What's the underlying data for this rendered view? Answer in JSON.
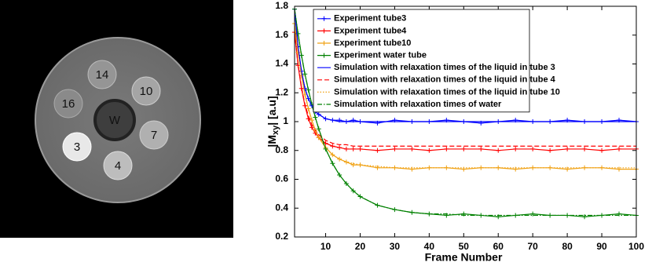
{
  "phantom": {
    "labels": [
      "14",
      "10",
      "16",
      "W",
      "7",
      "3",
      "4"
    ]
  },
  "chart_data": {
    "type": "line",
    "xlabel": "Frame Number",
    "ylabel": {
      "main": "|M",
      "sub": "xy",
      "rest": "| [a.u]"
    },
    "xlim": [
      1,
      100
    ],
    "ylim": [
      0.2,
      1.8
    ],
    "xticks": [
      10,
      20,
      30,
      40,
      50,
      60,
      70,
      80,
      90,
      100
    ],
    "yticks": [
      0.2,
      0.4,
      0.6,
      0.8,
      1,
      1.2,
      1.4,
      1.6,
      1.8
    ],
    "legend": "top-left",
    "x": [
      1,
      2,
      3,
      4,
      5,
      6,
      7,
      8,
      10,
      12,
      14,
      16,
      18,
      20,
      25,
      30,
      35,
      40,
      45,
      50,
      55,
      60,
      65,
      70,
      75,
      80,
      85,
      90,
      95,
      100
    ],
    "series": [
      {
        "name": "Experiment tube3",
        "color": "#0000ff",
        "dash": "solid",
        "marker": "+",
        "values": [
          1.78,
          1.52,
          1.35,
          1.23,
          1.16,
          1.11,
          1.07,
          1.05,
          1.02,
          1.01,
          1.01,
          1.0,
          1.01,
          1.0,
          0.99,
          1.01,
          1.0,
          1.0,
          1.01,
          1.0,
          0.99,
          1.0,
          1.01,
          1.0,
          1.0,
          1.01,
          1.0,
          1.0,
          1.01,
          1.0
        ]
      },
      {
        "name": "Experiment tube4",
        "color": "#ff0000",
        "dash": "solid",
        "marker": "+",
        "values": [
          1.62,
          1.39,
          1.23,
          1.11,
          1.02,
          0.96,
          0.92,
          0.89,
          0.85,
          0.83,
          0.82,
          0.81,
          0.81,
          0.81,
          0.8,
          0.81,
          0.81,
          0.8,
          0.81,
          0.81,
          0.81,
          0.8,
          0.81,
          0.81,
          0.8,
          0.81,
          0.81,
          0.8,
          0.81,
          0.81
        ]
      },
      {
        "name": "Experiment tube10",
        "color": "#f0a010",
        "dash": "solid",
        "marker": "+",
        "values": [
          1.68,
          1.48,
          1.32,
          1.19,
          1.09,
          1.01,
          0.94,
          0.89,
          0.82,
          0.77,
          0.74,
          0.72,
          0.7,
          0.7,
          0.68,
          0.68,
          0.67,
          0.68,
          0.68,
          0.67,
          0.68,
          0.68,
          0.67,
          0.68,
          0.68,
          0.67,
          0.68,
          0.68,
          0.67,
          0.67
        ]
      },
      {
        "name": "Experiment water tube",
        "color": "#008000",
        "dash": "solid",
        "marker": "+",
        "values": [
          1.78,
          1.61,
          1.46,
          1.33,
          1.22,
          1.12,
          1.03,
          0.95,
          0.81,
          0.71,
          0.63,
          0.57,
          0.52,
          0.48,
          0.42,
          0.39,
          0.37,
          0.36,
          0.35,
          0.36,
          0.35,
          0.34,
          0.35,
          0.36,
          0.35,
          0.35,
          0.34,
          0.35,
          0.36,
          0.35
        ]
      },
      {
        "name": "Simulation with relaxation times of the liquid in tube 3",
        "color": "#0000ff",
        "dash": "solid",
        "values": [
          1.78,
          1.52,
          1.35,
          1.23,
          1.16,
          1.11,
          1.07,
          1.05,
          1.02,
          1.01,
          1.0,
          1.0,
          1.0,
          1.0,
          1.0,
          1.0,
          1.0,
          1.0,
          1.0,
          1.0,
          1.0,
          1.0,
          1.0,
          1.0,
          1.0,
          1.0,
          1.0,
          1.0,
          1.0,
          1.0
        ]
      },
      {
        "name": "Simulation with relaxation times of the liquid in tube 4",
        "color": "#ff0000",
        "dash": "dashed",
        "values": [
          1.62,
          1.4,
          1.24,
          1.12,
          1.04,
          0.98,
          0.94,
          0.91,
          0.87,
          0.85,
          0.84,
          0.84,
          0.83,
          0.83,
          0.83,
          0.83,
          0.83,
          0.83,
          0.83,
          0.83,
          0.83,
          0.83,
          0.83,
          0.83,
          0.83,
          0.83,
          0.83,
          0.83,
          0.83,
          0.83
        ]
      },
      {
        "name": "Simulation with relaxation times of the liquid in tube 10",
        "color": "#f0a010",
        "dash": "dotted",
        "values": [
          1.68,
          1.48,
          1.32,
          1.19,
          1.09,
          1.01,
          0.94,
          0.89,
          0.82,
          0.77,
          0.74,
          0.72,
          0.71,
          0.7,
          0.69,
          0.68,
          0.68,
          0.68,
          0.68,
          0.68,
          0.68,
          0.68,
          0.68,
          0.68,
          0.68,
          0.68,
          0.68,
          0.68,
          0.68,
          0.68
        ]
      },
      {
        "name": "Simulation with relaxation times of water",
        "color": "#008000",
        "dash": "dashdot",
        "values": [
          1.78,
          1.61,
          1.46,
          1.33,
          1.22,
          1.12,
          1.03,
          0.95,
          0.81,
          0.71,
          0.63,
          0.57,
          0.52,
          0.48,
          0.42,
          0.39,
          0.37,
          0.36,
          0.36,
          0.35,
          0.35,
          0.35,
          0.35,
          0.35,
          0.35,
          0.35,
          0.35,
          0.35,
          0.35,
          0.35
        ]
      }
    ]
  }
}
